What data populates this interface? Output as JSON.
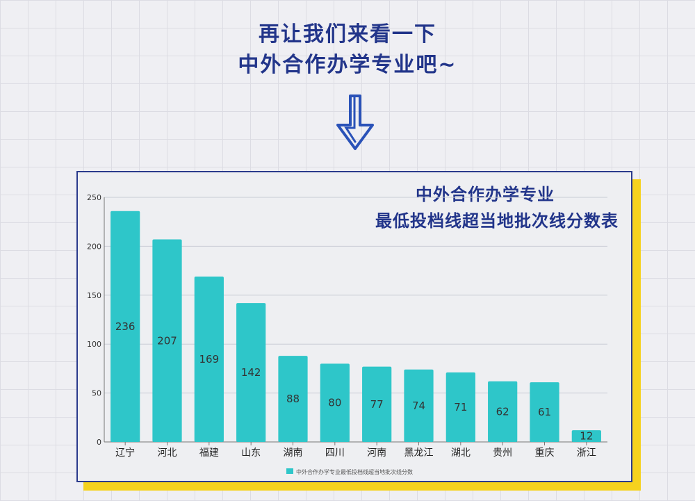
{
  "header": {
    "line1": "再让我们来看一下",
    "line2": "中外合作办学专业吧~"
  },
  "colors": {
    "accent": "#2a3a8c",
    "shadow": "#f5d21e",
    "bar": "#2ec6c9"
  },
  "icons": {
    "arrow": "down-arrow-icon"
  },
  "chart_data": {
    "type": "bar",
    "title_lines": [
      "中外合作办学专业",
      "最低投档线超当地批次线分数表"
    ],
    "categories": [
      "辽宁",
      "河北",
      "福建",
      "山东",
      "湖南",
      "四川",
      "河南",
      "黑龙江",
      "湖北",
      "贵州",
      "重庆",
      "浙江"
    ],
    "series": [
      {
        "name": "中外合作办学专业最低投档线超当地批次线分数",
        "values": [
          236,
          207,
          169,
          142,
          88,
          80,
          77,
          74,
          71,
          62,
          61,
          12
        ]
      }
    ],
    "ylim": [
      0,
      250
    ],
    "yticks": [
      0,
      50,
      100,
      150,
      200,
      250
    ],
    "legend": "bottom-center",
    "grid": true
  }
}
